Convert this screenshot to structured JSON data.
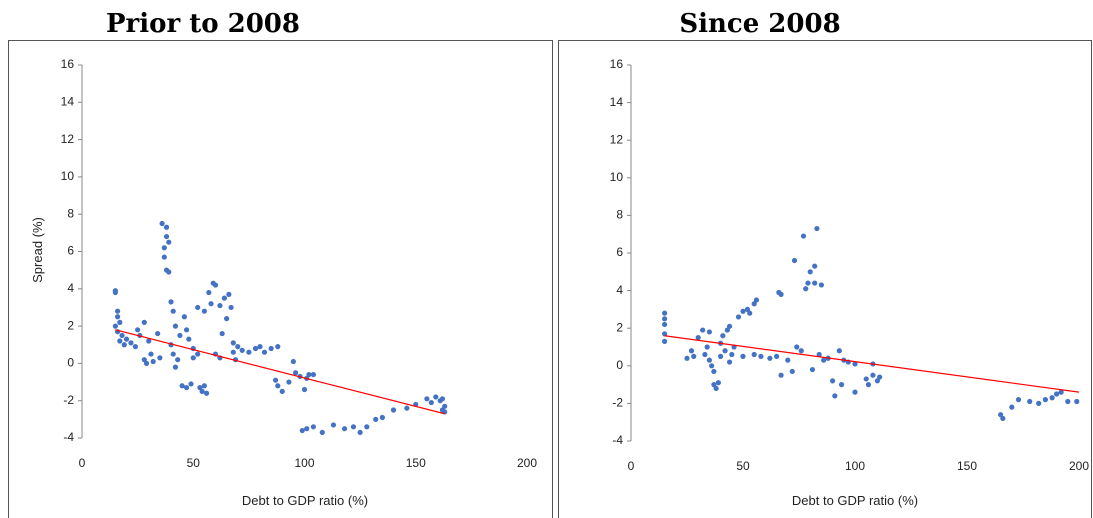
{
  "chart_data": [
    {
      "type": "scatter",
      "title": "Prior to 2008",
      "xlabel": "Debt to GDP ratio (%)",
      "ylabel": "Spread (%)",
      "color": "#4472c4",
      "x": [
        15,
        15,
        16,
        16,
        17,
        15,
        16,
        18,
        17,
        19,
        20,
        22,
        24,
        25,
        26,
        28,
        28,
        29,
        30,
        31,
        32,
        34,
        35,
        36,
        38,
        37,
        38,
        39,
        37,
        38,
        39,
        40,
        41,
        42,
        40,
        41,
        43,
        42,
        44,
        45,
        47,
        49,
        46,
        47,
        48,
        50,
        50,
        52,
        53,
        54,
        55,
        56,
        52,
        55,
        57,
        58,
        59,
        60,
        62,
        64,
        66,
        67,
        65,
        63,
        60,
        62,
        68,
        68,
        69,
        70,
        72,
        75,
        78,
        80,
        82,
        85,
        88,
        87,
        88,
        90,
        93,
        95,
        96,
        98,
        100,
        101,
        102,
        104,
        99,
        101,
        104,
        108,
        113,
        118,
        122,
        125,
        128,
        132,
        135,
        140,
        146,
        150,
        155,
        157,
        159,
        162,
        163,
        163,
        162,
        161
      ],
      "y": [
        3.9,
        3.8,
        2.8,
        2.5,
        2.2,
        2.0,
        1.7,
        1.5,
        1.2,
        1.0,
        1.3,
        1.1,
        0.9,
        1.8,
        1.5,
        2.2,
        0.2,
        0.0,
        1.2,
        0.5,
        0.1,
        1.6,
        0.3,
        7.5,
        7.3,
        6.2,
        6.8,
        6.5,
        5.7,
        5.0,
        4.9,
        3.3,
        2.8,
        2.0,
        1.0,
        0.5,
        0.2,
        -0.2,
        1.5,
        -1.2,
        -1.3,
        -1.1,
        2.5,
        1.8,
        1.3,
        0.8,
        0.3,
        0.5,
        -1.3,
        -1.5,
        -1.2,
        -1.6,
        3.0,
        2.8,
        3.8,
        3.2,
        4.3,
        4.2,
        3.1,
        3.5,
        3.7,
        3.0,
        2.4,
        1.6,
        0.5,
        0.3,
        1.1,
        0.6,
        0.2,
        0.9,
        0.7,
        0.6,
        0.8,
        0.9,
        0.6,
        0.8,
        0.9,
        -0.9,
        -1.2,
        -1.5,
        -1.0,
        0.1,
        -0.5,
        -0.7,
        -1.4,
        -0.8,
        -0.6,
        -0.6,
        -3.6,
        -3.5,
        -3.4,
        -3.7,
        -3.3,
        -3.5,
        -3.4,
        -3.7,
        -3.4,
        -3.0,
        -2.9,
        -2.5,
        -2.4,
        -2.2,
        -1.9,
        -2.1,
        -1.8,
        -1.9,
        -2.3,
        -2.6,
        -2.5,
        -2.0
      ],
      "trend": {
        "x": [
          15,
          163
        ],
        "y": [
          1.8,
          -2.7
        ],
        "color": "#ff0000"
      },
      "xlim": [
        0,
        200
      ],
      "ylim": [
        -4,
        16
      ],
      "xticks": [
        0,
        50,
        100,
        150,
        200
      ],
      "yticks": [
        -4,
        -2,
        0,
        2,
        4,
        6,
        8,
        10,
        12,
        14,
        16
      ]
    },
    {
      "type": "scatter",
      "title": "Since 2008",
      "xlabel": "Debt to GDP ratio (%)",
      "color": "#4472c4",
      "x": [
        15,
        15,
        15,
        15,
        15,
        25,
        27,
        28,
        30,
        32,
        33,
        34,
        35,
        35,
        36,
        37,
        37,
        38,
        39,
        40,
        40,
        41,
        42,
        43,
        44,
        44,
        45,
        46,
        48,
        50,
        52,
        53,
        55,
        56,
        50,
        55,
        58,
        62,
        66,
        67,
        65,
        67,
        70,
        72,
        73,
        74,
        76,
        77,
        78,
        79,
        80,
        81,
        82,
        82,
        83,
        84,
        85,
        86,
        88,
        90,
        91,
        93,
        94,
        95,
        97,
        100,
        100,
        105,
        106,
        108,
        108,
        110,
        111,
        165,
        166,
        170,
        173,
        178,
        182,
        185,
        188,
        190,
        192,
        195,
        199
      ],
      "y": [
        2.8,
        2.5,
        2.2,
        1.7,
        1.3,
        0.4,
        0.8,
        0.5,
        1.5,
        1.9,
        0.6,
        1.0,
        1.8,
        0.3,
        0.0,
        -0.3,
        -1.0,
        -1.2,
        -0.9,
        0.5,
        1.2,
        1.6,
        0.8,
        1.9,
        2.1,
        0.2,
        0.6,
        1.0,
        2.6,
        2.9,
        3.0,
        2.8,
        3.3,
        3.5,
        0.5,
        0.6,
        0.5,
        0.4,
        3.9,
        3.8,
        0.5,
        -0.5,
        0.3,
        -0.3,
        5.6,
        1.0,
        0.8,
        6.9,
        4.1,
        4.4,
        5.0,
        -0.2,
        4.4,
        5.3,
        7.3,
        0.6,
        4.3,
        0.3,
        0.4,
        -0.8,
        -1.6,
        0.8,
        -1.0,
        0.3,
        0.2,
        -1.4,
        0.1,
        -0.7,
        -1.0,
        0.1,
        -0.5,
        -0.8,
        -0.6,
        -2.6,
        -2.8,
        -2.2,
        -1.8,
        -1.9,
        -2.0,
        -1.8,
        -1.7,
        -1.5,
        -1.4,
        -1.9,
        -1.9
      ],
      "trend": {
        "x": [
          15,
          200
        ],
        "y": [
          1.6,
          -1.4
        ],
        "color": "#ff0000"
      },
      "xlim": [
        0,
        200
      ],
      "ylim": [
        -4,
        16
      ],
      "xticks": [
        0,
        50,
        100,
        150,
        200
      ],
      "yticks": [
        -4,
        -2,
        0,
        2,
        4,
        6,
        8,
        10,
        12,
        14,
        16
      ]
    }
  ]
}
